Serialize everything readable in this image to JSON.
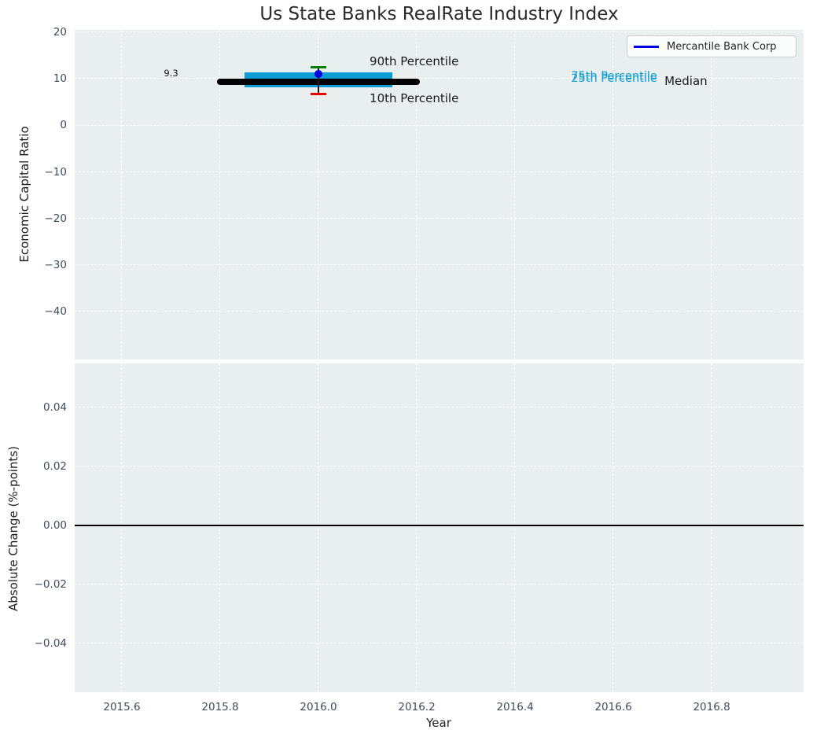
{
  "title": "Us State Banks RealRate Industry Index",
  "colors": {
    "figure_bg": "#ffffff",
    "axes_bg": "#e9eeef",
    "grid": "#ffffff",
    "accent_blue": "#0000e6",
    "accent_cyan": "#0d9dd4",
    "accent_green": "#008000",
    "accent_red": "#ee0000",
    "tick_text": "#3e4b5c"
  },
  "legend": {
    "label": "Mercantile Bank Corp",
    "color": "#0000e6"
  },
  "chart_data": [
    {
      "type": "line",
      "name": "economic-capital-ratio-panel",
      "title": "Us State Banks RealRate Industry Index",
      "xlabel": "",
      "ylabel": "Economic Capital Ratio",
      "xlim": [
        2015.504,
        2016.987
      ],
      "ylim": [
        -50.3,
        20.5
      ],
      "grid": "white-dashed",
      "legend_position": "upper right",
      "show_xticklabels": false,
      "xticks": [
        {
          "v": 2015.6,
          "label": "2015.6"
        },
        {
          "v": 2015.8,
          "label": "2015.8"
        },
        {
          "v": 2016.0,
          "label": "2016.0"
        },
        {
          "v": 2016.2,
          "label": "2016.2"
        },
        {
          "v": 2016.4,
          "label": "2016.4"
        },
        {
          "v": 2016.6,
          "label": "2016.6"
        },
        {
          "v": 2016.8,
          "label": "2016.8"
        }
      ],
      "yticks": [
        {
          "v": 20,
          "label": "20"
        },
        {
          "v": 10,
          "label": "10"
        },
        {
          "v": 0,
          "label": "0"
        },
        {
          "v": -10,
          "label": "−10"
        },
        {
          "v": -20,
          "label": "−20"
        },
        {
          "v": -30,
          "label": "−30"
        },
        {
          "v": -40,
          "label": "−40"
        }
      ],
      "series": [
        {
          "name": "iqr-band",
          "label": "25th-75th Percentile band",
          "type": "band",
          "color": "#0d9dd4",
          "x_start": 2015.85,
          "x_end": 2016.15,
          "y_low": 8.2,
          "y_high": 11.4
        },
        {
          "name": "median-line",
          "label": "Median",
          "type": "thick_hline",
          "color": "#000000",
          "x_start": 2015.8,
          "x_end": 2016.2,
          "y": 9.3,
          "lw": 8
        },
        {
          "name": "decile-whisker",
          "label": "10th-90th Percentile whisker",
          "type": "errorbar",
          "x": 2016.0,
          "y_low": 6.8,
          "y_high": 12.4,
          "stem_color": "#1a1a1a",
          "cap_high_color": "#008000",
          "cap_low_color": "#ee0000",
          "cap_w": 20,
          "cap_h": 3
        },
        {
          "name": "mercantile-bank-corp-point",
          "label": "Mercantile Bank Corp",
          "type": "point",
          "color": "#0000e6",
          "x": 2016.0,
          "y": 11.1,
          "size": 10
        }
      ],
      "annotations": [
        {
          "name": "median-value-annotation",
          "text": "9.3",
          "x": 2015.7,
          "y": 11.2,
          "color": "#1a1a1a",
          "size": 11.5,
          "anchor": "center"
        },
        {
          "name": "p90-label",
          "text": "90th Percentile",
          "x": 2016.104,
          "y": 13.7,
          "color": "#1a1a1a",
          "size": 15,
          "anchor": "left"
        },
        {
          "name": "p10-label",
          "text": "10th Percentile",
          "x": 2016.104,
          "y": 5.8,
          "color": "#1a1a1a",
          "size": 15,
          "anchor": "left"
        },
        {
          "name": "p75-label",
          "text": "75th Percentile",
          "x": 2016.514,
          "y": 10.55,
          "color": "#0d9dd4",
          "size": 14.5,
          "anchor": "left"
        },
        {
          "name": "p25-label",
          "text": "25th Percentile",
          "x": 2016.514,
          "y": 10.0,
          "color": "#0d9dd4",
          "size": 14.5,
          "anchor": "left"
        },
        {
          "name": "median-label",
          "text": "Median",
          "x": 2016.704,
          "y": 9.5,
          "color": "#1a1a1a",
          "size": 15,
          "anchor": "left"
        }
      ]
    },
    {
      "type": "line",
      "name": "absolute-change-panel",
      "title": "",
      "xlabel": "Year",
      "ylabel": "Absolute Change (%-points)",
      "xlim": [
        2015.504,
        2016.987
      ],
      "ylim": [
        -0.0565,
        0.0549
      ],
      "grid": "white-dashed",
      "show_xticklabels": true,
      "xticks": [
        {
          "v": 2015.6,
          "label": "2015.6"
        },
        {
          "v": 2015.8,
          "label": "2015.8"
        },
        {
          "v": 2016.0,
          "label": "2016.0"
        },
        {
          "v": 2016.2,
          "label": "2016.2"
        },
        {
          "v": 2016.4,
          "label": "2016.4"
        },
        {
          "v": 2016.6,
          "label": "2016.6"
        },
        {
          "v": 2016.8,
          "label": "2016.8"
        }
      ],
      "yticks": [
        {
          "v": 0.04,
          "label": "0.04"
        },
        {
          "v": 0.02,
          "label": "0.02"
        },
        {
          "v": 0.0,
          "label": "0.00"
        },
        {
          "v": -0.02,
          "label": "−0.02"
        },
        {
          "v": -0.04,
          "label": "−0.04"
        }
      ],
      "series": [
        {
          "name": "zero-change-line",
          "label": "zero line",
          "type": "hline",
          "y": 0.0,
          "color": "#000000",
          "lw": 2
        }
      ],
      "annotations": []
    }
  ]
}
